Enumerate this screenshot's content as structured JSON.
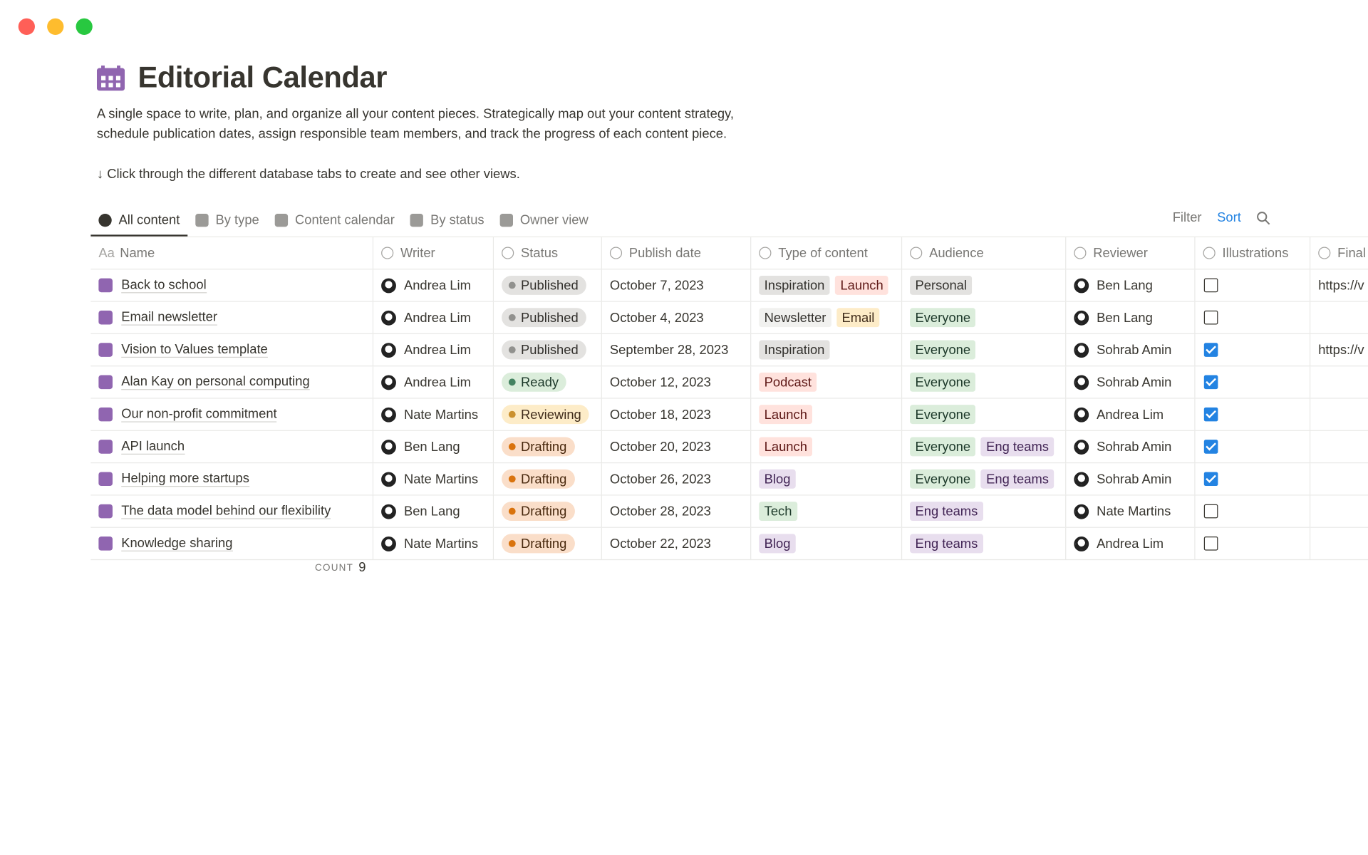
{
  "header": {
    "title": "Editorial Calendar",
    "description_lines": [
      "A single space to write, plan, and organize all your content pieces. Strategically map out your content strategy,",
      "schedule publication dates, assign responsible team members, and track the progress of each content piece."
    ],
    "hint": "↓ Click through the different database tabs to create and see other views."
  },
  "tabs": {
    "items": [
      "All content",
      "By type",
      "Content calendar",
      "By status",
      "Owner view"
    ],
    "active": 0
  },
  "toolbar": {
    "filter": "Filter",
    "sort": "Sort"
  },
  "table": {
    "name_icon": "Aa",
    "columns": [
      "Name",
      "Writer",
      "Status",
      "Publish date",
      "Type of content",
      "Audience",
      "Reviewer",
      "Illustrations",
      "Final"
    ],
    "rows": [
      {
        "name": "Back to school",
        "writer": "Andrea Lim",
        "status": {
          "label": "Published",
          "color": "gray"
        },
        "date": "October 7, 2023",
        "type": [
          {
            "label": "Inspiration",
            "color": "gray"
          },
          {
            "label": "Launch",
            "color": "red"
          }
        ],
        "audience": [
          {
            "label": "Personal",
            "color": "gray"
          }
        ],
        "reviewer": "Ben Lang",
        "illustrations": false,
        "final": "https://v"
      },
      {
        "name": "Email newsletter",
        "writer": "Andrea Lim",
        "status": {
          "label": "Published",
          "color": "gray"
        },
        "date": "October 4, 2023",
        "type": [
          {
            "label": "Newsletter",
            "color": "lightgray"
          },
          {
            "label": "Email",
            "color": "yellow"
          }
        ],
        "audience": [
          {
            "label": "Everyone",
            "color": "green"
          }
        ],
        "reviewer": "Ben Lang",
        "illustrations": false,
        "final": null
      },
      {
        "name": "Vision to Values template",
        "writer": "Andrea Lim",
        "status": {
          "label": "Published",
          "color": "gray"
        },
        "date": "September 28, 2023",
        "type": [
          {
            "label": "Inspiration",
            "color": "gray"
          }
        ],
        "audience": [
          {
            "label": "Everyone",
            "color": "green"
          }
        ],
        "reviewer": "Sohrab Amin",
        "illustrations": true,
        "final": "https://v"
      },
      {
        "name": "Alan Kay on personal computing",
        "writer": "Andrea Lim",
        "status": {
          "label": "Ready",
          "color": "green"
        },
        "date": "October 12, 2023",
        "type": [
          {
            "label": "Podcast",
            "color": "red"
          }
        ],
        "audience": [
          {
            "label": "Everyone",
            "color": "green"
          }
        ],
        "reviewer": "Sohrab Amin",
        "illustrations": true,
        "final": null
      },
      {
        "name": "Our non-profit commitment",
        "writer": "Nate Martins",
        "status": {
          "label": "Reviewing",
          "color": "yellow"
        },
        "date": "October 18, 2023",
        "type": [
          {
            "label": "Launch",
            "color": "red"
          }
        ],
        "audience": [
          {
            "label": "Everyone",
            "color": "green"
          }
        ],
        "reviewer": "Andrea Lim",
        "illustrations": true,
        "final": null
      },
      {
        "name": "API launch",
        "writer": "Ben Lang",
        "status": {
          "label": "Drafting",
          "color": "orange"
        },
        "date": "October 20, 2023",
        "type": [
          {
            "label": "Launch",
            "color": "red"
          }
        ],
        "audience": [
          {
            "label": "Everyone",
            "color": "green"
          },
          {
            "label": "Eng teams",
            "color": "purple"
          }
        ],
        "reviewer": "Sohrab Amin",
        "illustrations": true,
        "final": null
      },
      {
        "name": "Helping more startups",
        "writer": "Nate Martins",
        "status": {
          "label": "Drafting",
          "color": "orange"
        },
        "date": "October 26, 2023",
        "type": [
          {
            "label": "Blog",
            "color": "purple"
          }
        ],
        "audience": [
          {
            "label": "Everyone",
            "color": "green"
          },
          {
            "label": "Eng teams",
            "color": "purple"
          }
        ],
        "reviewer": "Sohrab Amin",
        "illustrations": true,
        "final": null
      },
      {
        "name": "The data model behind our flexibility",
        "writer": "Ben Lang",
        "status": {
          "label": "Drafting",
          "color": "orange"
        },
        "date": "October 28, 2023",
        "type": [
          {
            "label": "Tech",
            "color": "green"
          }
        ],
        "audience": [
          {
            "label": "Eng teams",
            "color": "purple"
          }
        ],
        "reviewer": "Nate Martins",
        "illustrations": false,
        "final": null
      },
      {
        "name": "Knowledge sharing",
        "writer": "Nate Martins",
        "status": {
          "label": "Drafting",
          "color": "orange"
        },
        "date": "October 22, 2023",
        "type": [
          {
            "label": "Blog",
            "color": "purple"
          }
        ],
        "audience": [
          {
            "label": "Eng teams",
            "color": "purple"
          }
        ],
        "reviewer": "Andrea Lim",
        "illustrations": false,
        "final": null
      }
    ],
    "count": {
      "label": "COUNT",
      "value": 9
    }
  }
}
